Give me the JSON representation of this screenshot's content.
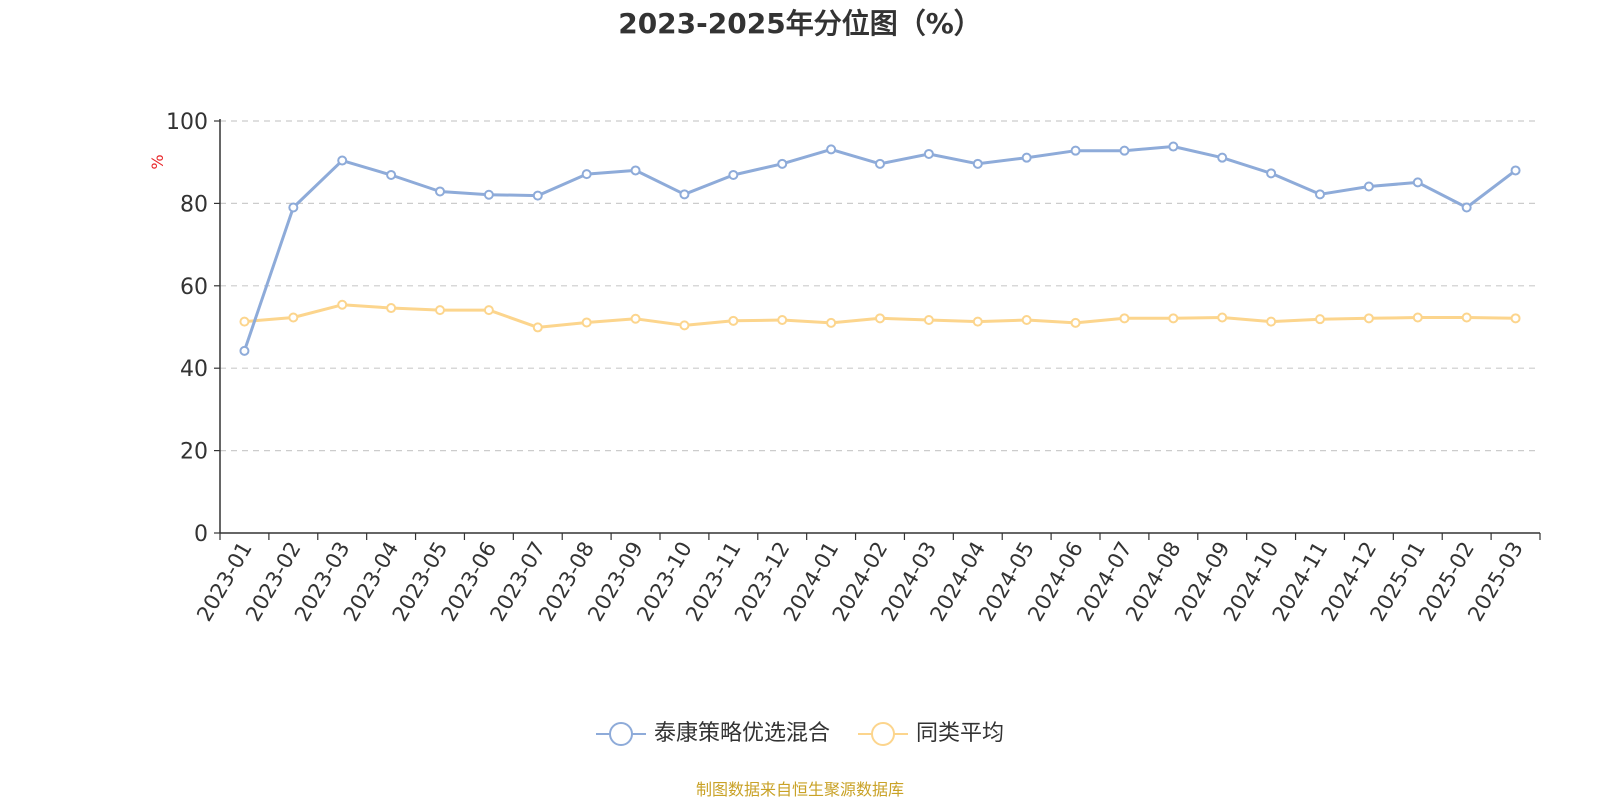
{
  "title": "2023-2025年分位图（%）",
  "source_text": "制图数据来自恒生聚源数据库",
  "colors": {
    "series1": "#8eabd9",
    "series2": "#fcd58d",
    "axis": "#333333",
    "grid": "#cccccc",
    "ylabel": "#e8262a",
    "source": "#c9a227"
  },
  "chart_data": {
    "type": "line",
    "title": "2023-2025年分位图（%）",
    "xlabel": "",
    "ylabel": "%",
    "ylim": [
      0,
      100
    ],
    "yticks": [
      "0",
      "20",
      "40",
      "60",
      "80",
      "100"
    ],
    "grid": "horizontal dashed",
    "legend_position": "bottom",
    "categories": [
      "2023-01",
      "2023-02",
      "2023-03",
      "2023-04",
      "2023-05",
      "2023-06",
      "2023-07",
      "2023-08",
      "2023-09",
      "2023-10",
      "2023-11",
      "2023-12",
      "2024-01",
      "2024-02",
      "2024-03",
      "2024-04",
      "2024-05",
      "2024-06",
      "2024-07",
      "2024-08",
      "2024-09",
      "2024-10",
      "2024-11",
      "2024-12",
      "2025-01",
      "2025-02",
      "2025-03"
    ],
    "series": [
      {
        "name": "泰康策略优选混合",
        "values": [
          44.2,
          79,
          90.4,
          86.9,
          82.9,
          82.1,
          81.9,
          87.1,
          88,
          82.2,
          86.9,
          89.6,
          93.1,
          89.6,
          92,
          89.6,
          91.1,
          92.8,
          92.8,
          93.8,
          91.1,
          87.3,
          82.2,
          84.1,
          85.1,
          79,
          88
        ]
      },
      {
        "name": "同类平均",
        "values": [
          51.3,
          52.3,
          55.4,
          54.6,
          54.1,
          54.1,
          49.9,
          51.1,
          52,
          50.4,
          51.5,
          51.7,
          51,
          52.1,
          51.7,
          51.3,
          51.7,
          51,
          52.1,
          52.1,
          52.3,
          51.3,
          51.9,
          52.1,
          52.3,
          52.3,
          52.1
        ]
      }
    ]
  }
}
